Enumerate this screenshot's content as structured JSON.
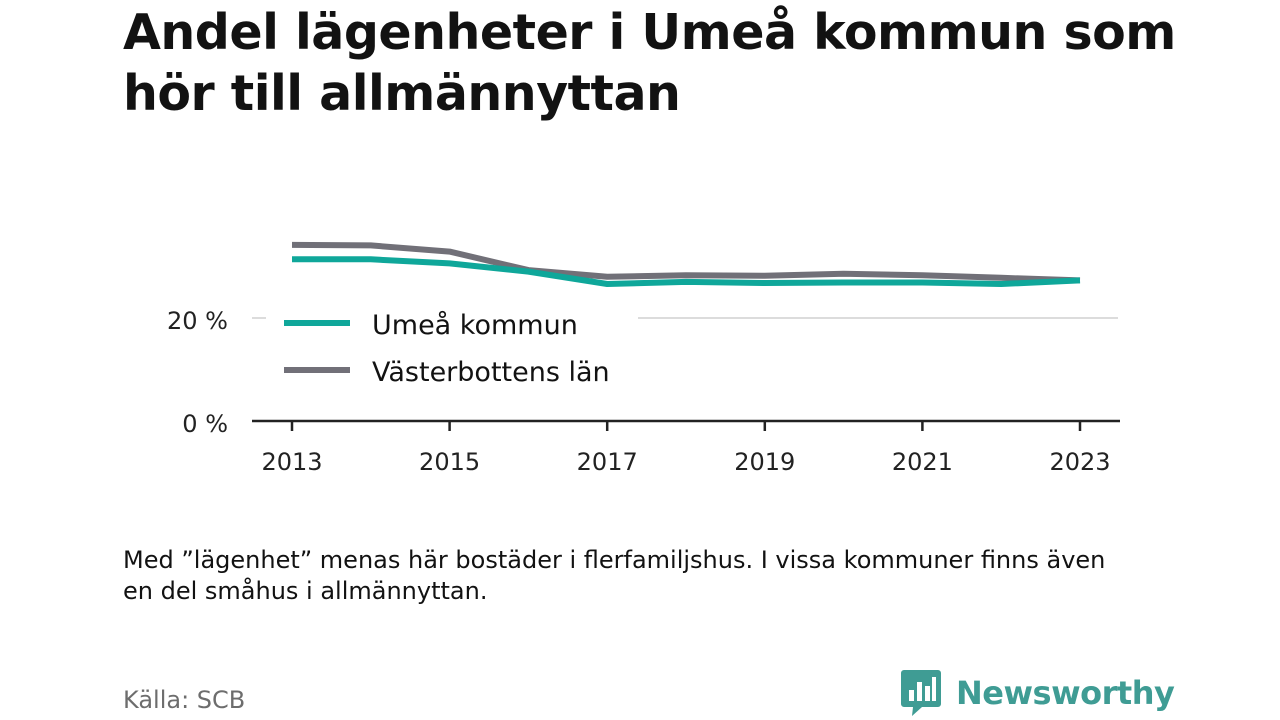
{
  "title": "Andel lägenheter i Umeå kommun som hör till allmännyttan",
  "note": "Med ”lägenhet” menas här bostäder i flerfamiljshus. I vissa kommuner finns även en del småhus i allmännyttan.",
  "source": "Källa: SCB",
  "brand": {
    "name": "Newsworthy",
    "icon": "newsworthy-logo-icon"
  },
  "colors": {
    "umea": "#0fa79a",
    "vasterbotten": "#717078",
    "axis": "#222222",
    "grid": "#dcdcdc",
    "brand": "#3f9c94"
  },
  "chart_data": {
    "type": "line",
    "x": [
      2013,
      2014,
      2015,
      2016,
      2017,
      2018,
      2019,
      2020,
      2021,
      2022,
      2023
    ],
    "xticks": [
      "2013",
      "2015",
      "2017",
      "2019",
      "2021",
      "2023"
    ],
    "yticks": [
      "0 %",
      "20 %"
    ],
    "ylim": [
      0,
      40
    ],
    "legend_position": "inside-left",
    "grid": true,
    "series": [
      {
        "name": "Umeå kommun",
        "color": "#0fa79a",
        "values": [
          31.4,
          31.4,
          30.6,
          29.0,
          26.6,
          27.0,
          26.8,
          26.9,
          26.9,
          26.6,
          27.3
        ]
      },
      {
        "name": "Västerbottens län",
        "color": "#717078",
        "values": [
          34.2,
          34.1,
          32.9,
          29.3,
          28.0,
          28.3,
          28.2,
          28.6,
          28.3,
          27.8,
          27.3
        ]
      }
    ]
  }
}
